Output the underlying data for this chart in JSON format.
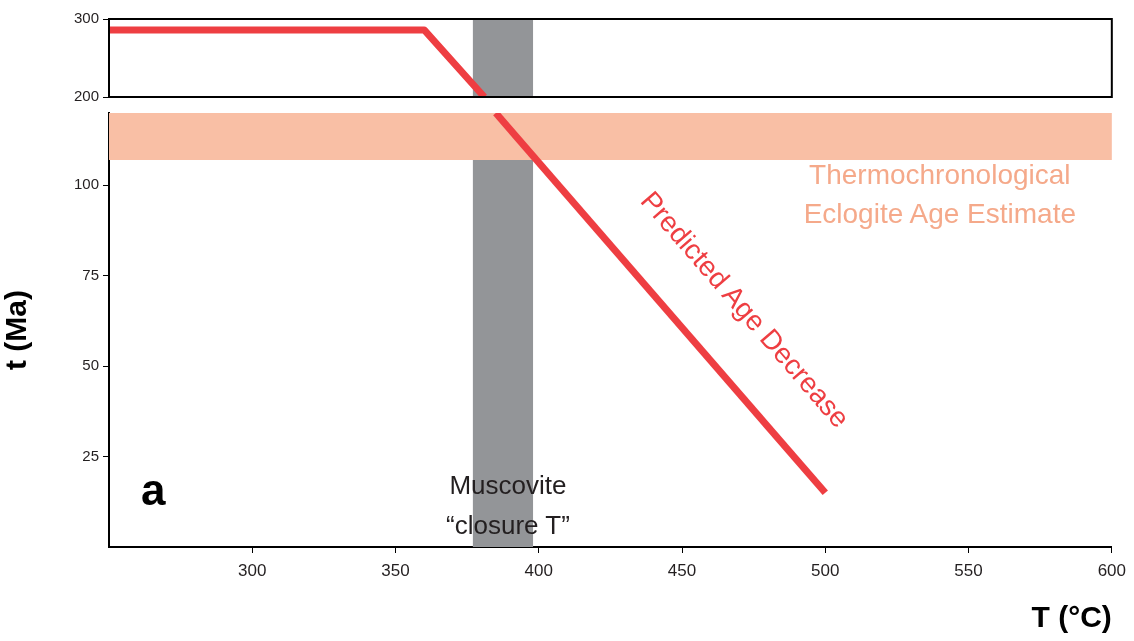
{
  "chart_data": [
    {
      "type": "line",
      "xlim": [
        250,
        600
      ],
      "ylim": [
        200,
        300
      ],
      "yticks": [
        200,
        300
      ],
      "tick_labels": "y",
      "grid": false,
      "legend": false,
      "marker": "none",
      "line_style": "solid",
      "series": [
        {
          "color": "#ee3e42",
          "x": [
            250,
            360,
            381
          ],
          "values": [
            286,
            286,
            200
          ]
        }
      ],
      "bands": [
        {
          "axis": "x",
          "from": 377,
          "to": 398,
          "color": "#939598"
        }
      ]
    },
    {
      "type": "line",
      "xlim": [
        250,
        600
      ],
      "ylim": [
        0,
        120
      ],
      "xticks": [
        300,
        350,
        400,
        450,
        500,
        550,
        600
      ],
      "yticks": [
        25,
        50,
        75,
        100
      ],
      "xlabel": "T (°C)",
      "ylabel": "t (Ma)",
      "grid": false,
      "legend": false,
      "marker": "none",
      "line_style": "solid",
      "series": [
        {
          "color": "#ee3e42",
          "x": [
            385,
            500
          ],
          "values": [
            120,
            15
          ]
        }
      ],
      "bands": [
        {
          "axis": "x",
          "from": 377,
          "to": 398,
          "color": "#939598",
          "label": "Muscovite “closure T”"
        },
        {
          "axis": "y",
          "from": 107,
          "to": 120,
          "color": "#f9bfa5",
          "label": "Thermochronological Eclogite Age Estimate"
        }
      ],
      "annotations": [
        "Predicted Age Decrease",
        "a"
      ]
    }
  ]
}
